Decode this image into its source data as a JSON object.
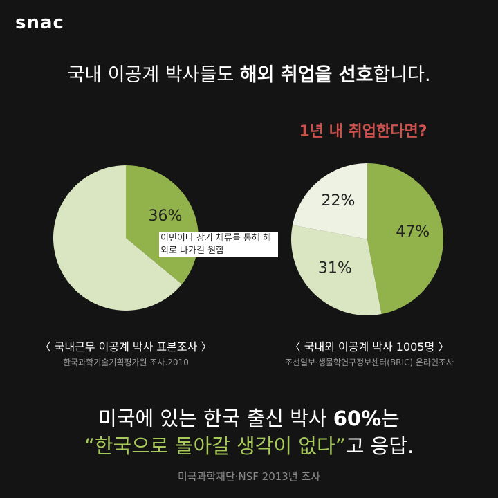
{
  "logo": "snac",
  "headline": [
    "국내 이공계 박사들도 ",
    "해외 취업을 선호",
    "합니다."
  ],
  "chart_data": [
    {
      "type": "pie",
      "categories": [
        "이민이나 장기 체류를 통해 해외로 나가길 원함",
        null
      ],
      "values": [
        36,
        64
      ],
      "value_labels": [
        "36%",
        null
      ],
      "colors": [
        "#92b24c",
        "#dae5c1"
      ],
      "caption": "〈 국내근무 이공계 박사 표본조사 〉",
      "source": "한국과학기술기획평가원 조사.2010"
    },
    {
      "type": "pie",
      "title": "1년 내 취업한다면?",
      "categories": [
        null,
        null,
        null
      ],
      "values": [
        47,
        31,
        22
      ],
      "value_labels": [
        "47%",
        "31%",
        "22%"
      ],
      "colors": [
        "#92b24c",
        "#dae5c1",
        "#eef2e2"
      ],
      "caption": "〈 국내외 이공계 박사 1005명 〉",
      "source": "조선일보·생물학연구정보센터(BRIC) 온라인조사"
    }
  ],
  "conclusion": {
    "line1": [
      "미국에 있는 한국 출신 박사 ",
      "60%",
      "는"
    ],
    "line2": [
      "“한국으로 돌아갈 생각이 없다”",
      "고 응답."
    ]
  },
  "footer": "미국과학재단·NSF 2013년 조사"
}
